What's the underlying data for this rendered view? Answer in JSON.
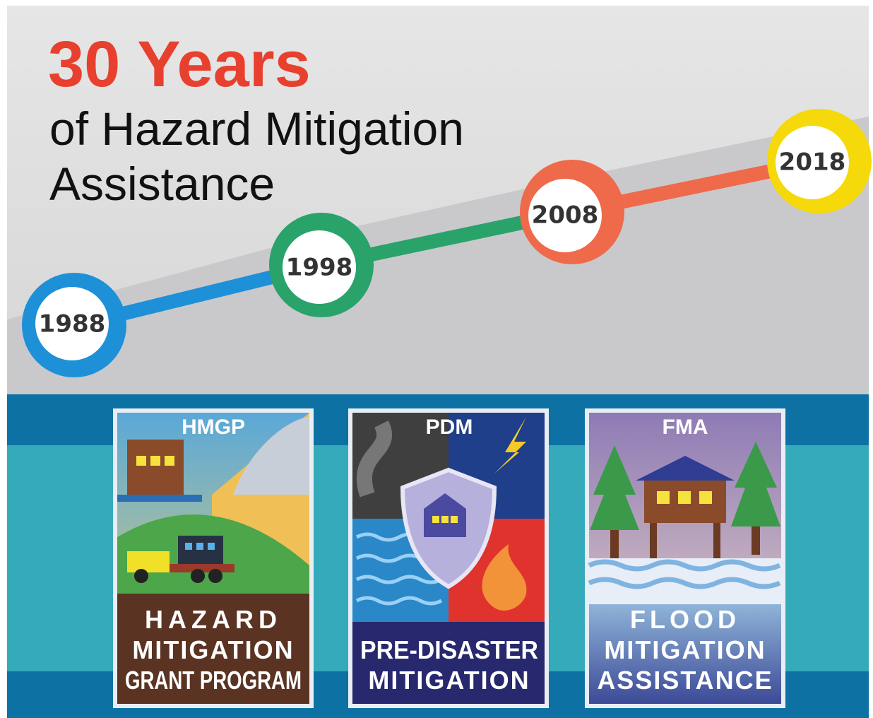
{
  "header": {
    "title": "30 Years",
    "subtitle_lines": [
      "of Hazard Mitigation",
      "Assistance"
    ]
  },
  "timeline": {
    "years": [
      "1988",
      "1998",
      "2008",
      "2018"
    ]
  },
  "programs": [
    {
      "acronym": "HMGP",
      "name_lines": [
        "HAZARD",
        "MITIGATION",
        "GRANT PROGRAM"
      ]
    },
    {
      "acronym": "PDM",
      "name_lines": [
        "PRE-DISASTER",
        "MITIGATION"
      ]
    },
    {
      "acronym": "FMA",
      "name_lines": [
        "FLOOD",
        "MITIGATION",
        "ASSISTANCE"
      ]
    }
  ]
}
